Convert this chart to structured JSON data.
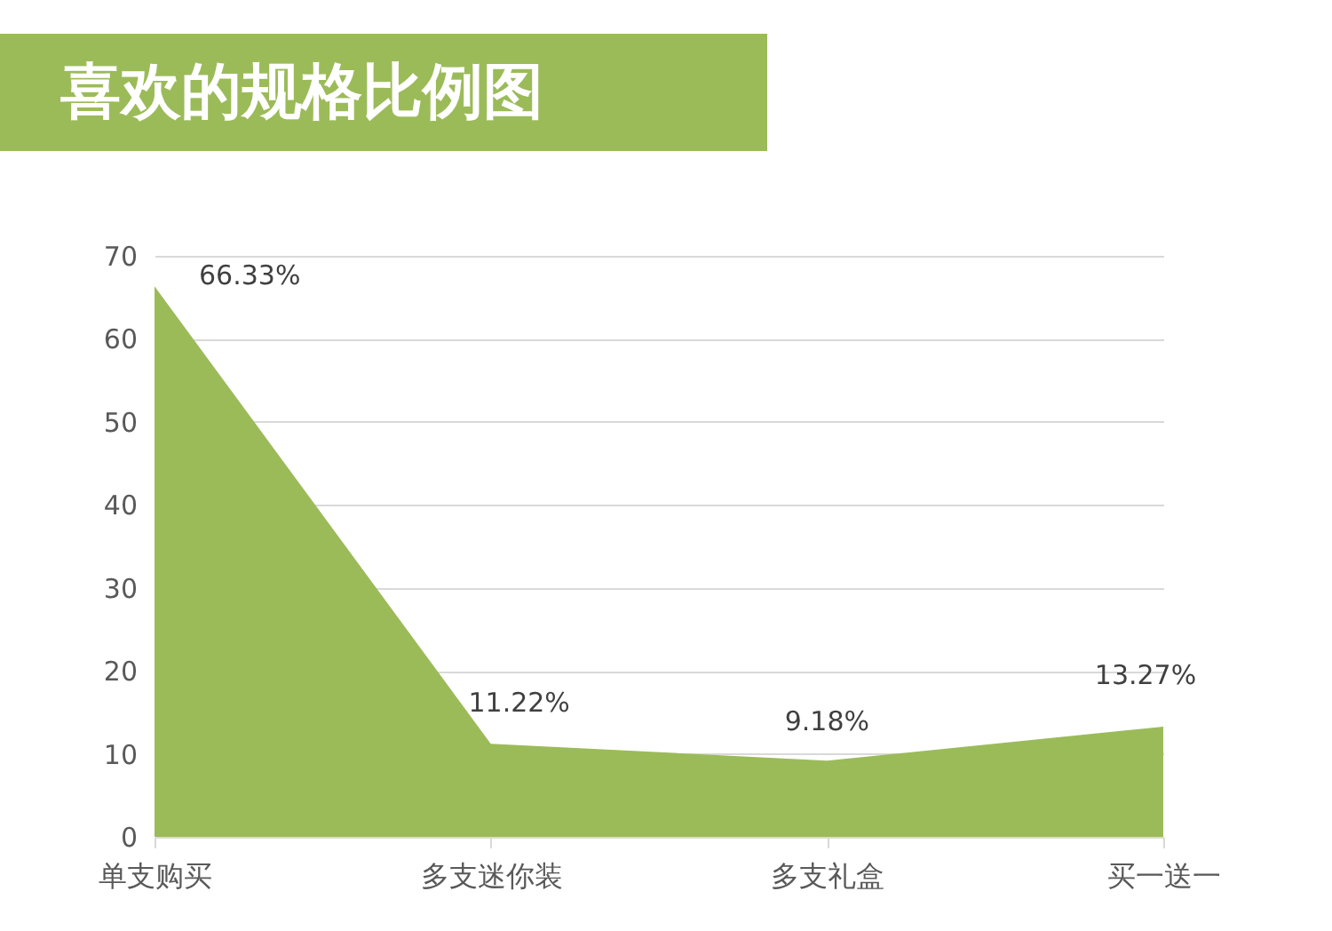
{
  "chart_data": {
    "type": "area",
    "title": "喜欢的规格比例图",
    "categories": [
      "单支购买",
      "多支迷你装",
      "多支礼盒",
      "买一送一"
    ],
    "values": [
      66.33,
      11.22,
      9.18,
      13.27
    ],
    "color": "#9bbb59",
    "value_labels": [
      "66.33%",
      "11.22%",
      "9.18%",
      "13.27%"
    ],
    "ylim": [
      0,
      70
    ],
    "yticks": [
      0,
      10,
      20,
      30,
      40,
      50,
      60,
      70
    ],
    "grid": "y"
  }
}
